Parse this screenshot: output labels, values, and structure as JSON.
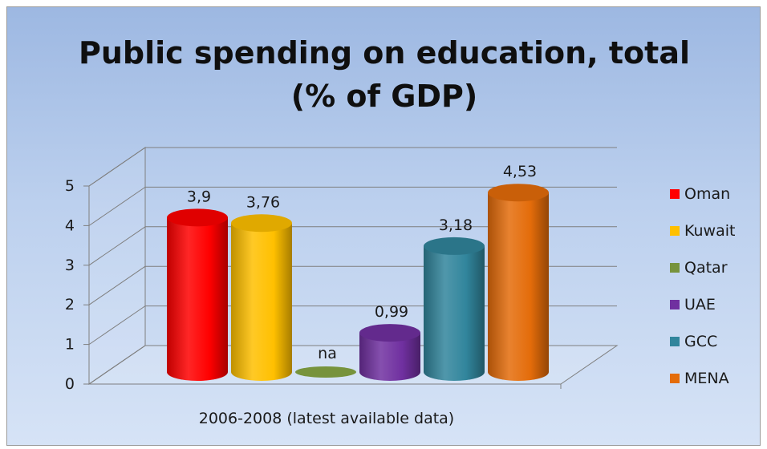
{
  "chart_data": {
    "type": "bar",
    "title_line1": "Public spending on education, total",
    "title_line2": "(% of GDP)",
    "xlabel": "2006-2008  (latest available data)",
    "ylabel": "",
    "ylim": [
      0,
      5
    ],
    "yticks": [
      "0",
      "1",
      "2",
      "3",
      "4",
      "5"
    ],
    "categories": [
      "Oman",
      "Kuwait",
      "Qatar",
      "UAE",
      "GCC",
      "MENA"
    ],
    "series": [
      {
        "name": "Oman",
        "value": 3.9,
        "label": "3,9",
        "color": "#ff0000"
      },
      {
        "name": "Kuwait",
        "value": 3.76,
        "label": "3,76",
        "color": "#ffc000"
      },
      {
        "name": "Qatar",
        "value": 0,
        "label": "na",
        "color": "#77933c"
      },
      {
        "name": "UAE",
        "value": 0.99,
        "label": "0,99",
        "color": "#7030a0"
      },
      {
        "name": "GCC",
        "value": 3.18,
        "label": "3,18",
        "color": "#31859c"
      },
      {
        "name": "MENA",
        "value": 4.53,
        "label": "4,53",
        "color": "#e46c0a"
      }
    ],
    "grid": true,
    "legend_position": "right"
  }
}
